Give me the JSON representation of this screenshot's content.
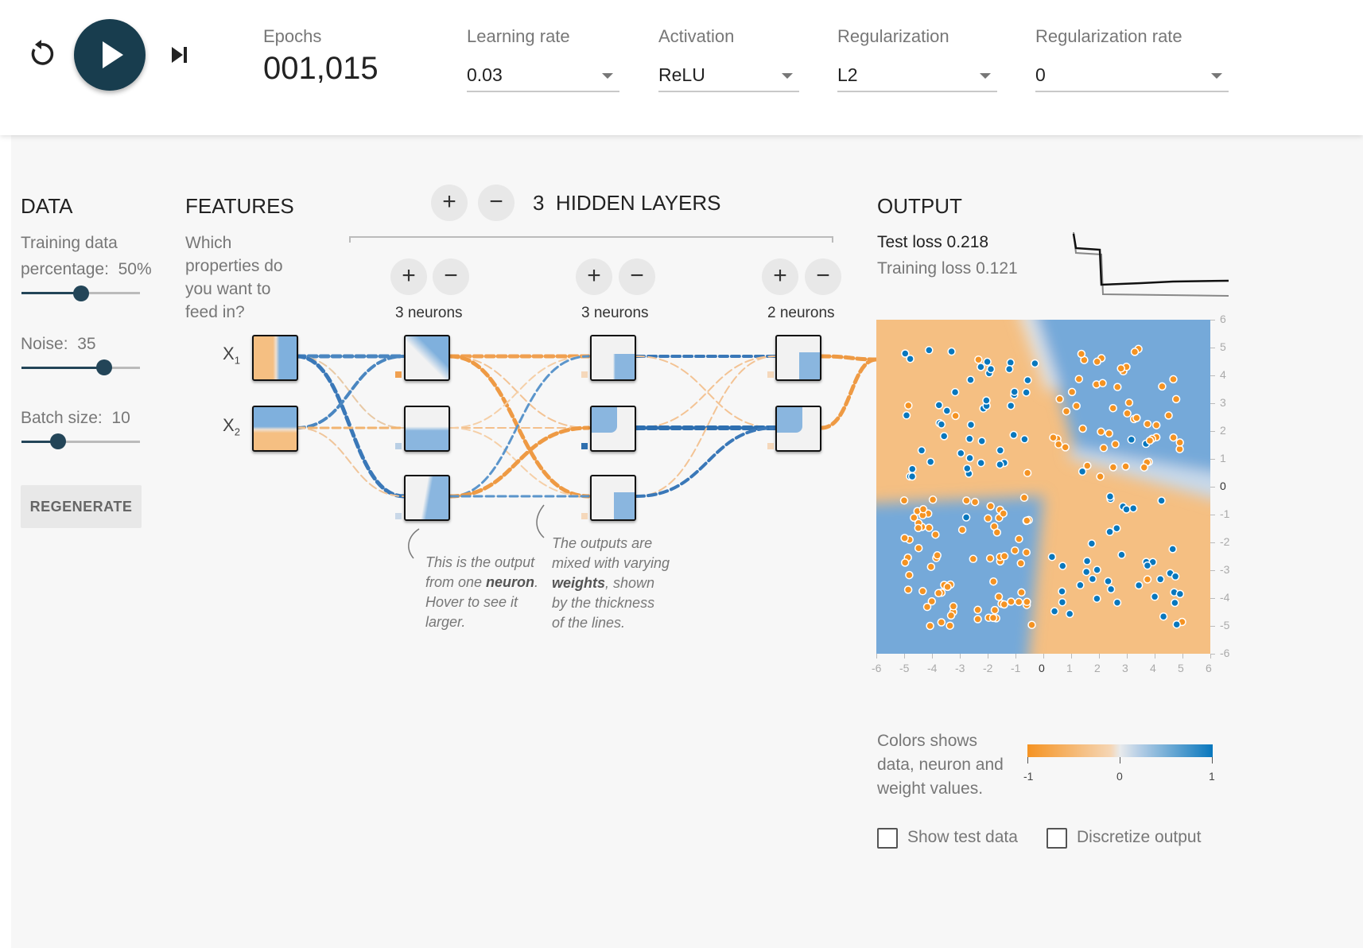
{
  "topbar": {
    "epochs_label": "Epochs",
    "epochs_value": "001,015",
    "controls": [
      {
        "label": "Learning rate",
        "value": "0.03"
      },
      {
        "label": "Activation",
        "value": "ReLU"
      },
      {
        "label": "Regularization",
        "value": "L2"
      },
      {
        "label": "Regularization rate",
        "value": "0"
      }
    ]
  },
  "data_panel": {
    "title": "DATA",
    "training_label_1": "Training data",
    "training_label_2": "percentage:",
    "training_value": "50%",
    "training_fraction": 0.5,
    "noise_label": "Noise:",
    "noise_value": "35",
    "noise_fraction": 0.7,
    "batch_label": "Batch size:",
    "batch_value": "10",
    "batch_fraction": 0.31,
    "regenerate_label": "REGENERATE"
  },
  "features": {
    "title": "FEATURES",
    "desc": [
      "Which",
      "properties do",
      "you want to",
      "feed in?"
    ],
    "x1": "X",
    "x1_sub": "1",
    "x2": "X",
    "x2_sub": "2"
  },
  "network": {
    "plus": "+",
    "minus": "−",
    "layer_count": "3",
    "layers_label": "HIDDEN LAYERS",
    "layers": [
      {
        "neurons_label": "3 neurons"
      },
      {
        "neurons_label": "3 neurons"
      },
      {
        "neurons_label": "2 neurons"
      }
    ],
    "annotation1": [
      "This is the output",
      "from one ",
      "neuron",
      ".",
      "Hover to see it",
      "larger."
    ],
    "annotation2": [
      "The outputs are",
      "mixed with varying",
      "weights",
      ", shown",
      "by the thickness",
      "of the lines."
    ]
  },
  "output": {
    "title": "OUTPUT",
    "test_loss_label": "Test loss",
    "test_loss_value": "0.218",
    "training_loss_label": "Training loss",
    "training_loss_value": "0.121",
    "x_ticks": [
      "-6",
      "-5",
      "-4",
      "-3",
      "-2",
      "-1",
      "0",
      "1",
      "2",
      "3",
      "4",
      "5",
      "6"
    ],
    "y_ticks": [
      "6",
      "5",
      "4",
      "3",
      "2",
      "1",
      "0",
      "-1",
      "-2",
      "-3",
      "-4",
      "-5",
      "-6"
    ],
    "legend_text": [
      "Colors shows",
      "data, neuron and",
      "weight values."
    ],
    "legend_ticks": [
      "-1",
      "0",
      "1"
    ],
    "show_test_label": "Show test data",
    "discretize_label": "Discretize output"
  },
  "colors": {
    "orange": "#f59322",
    "blue": "#0877bd",
    "dark": "#234558"
  }
}
